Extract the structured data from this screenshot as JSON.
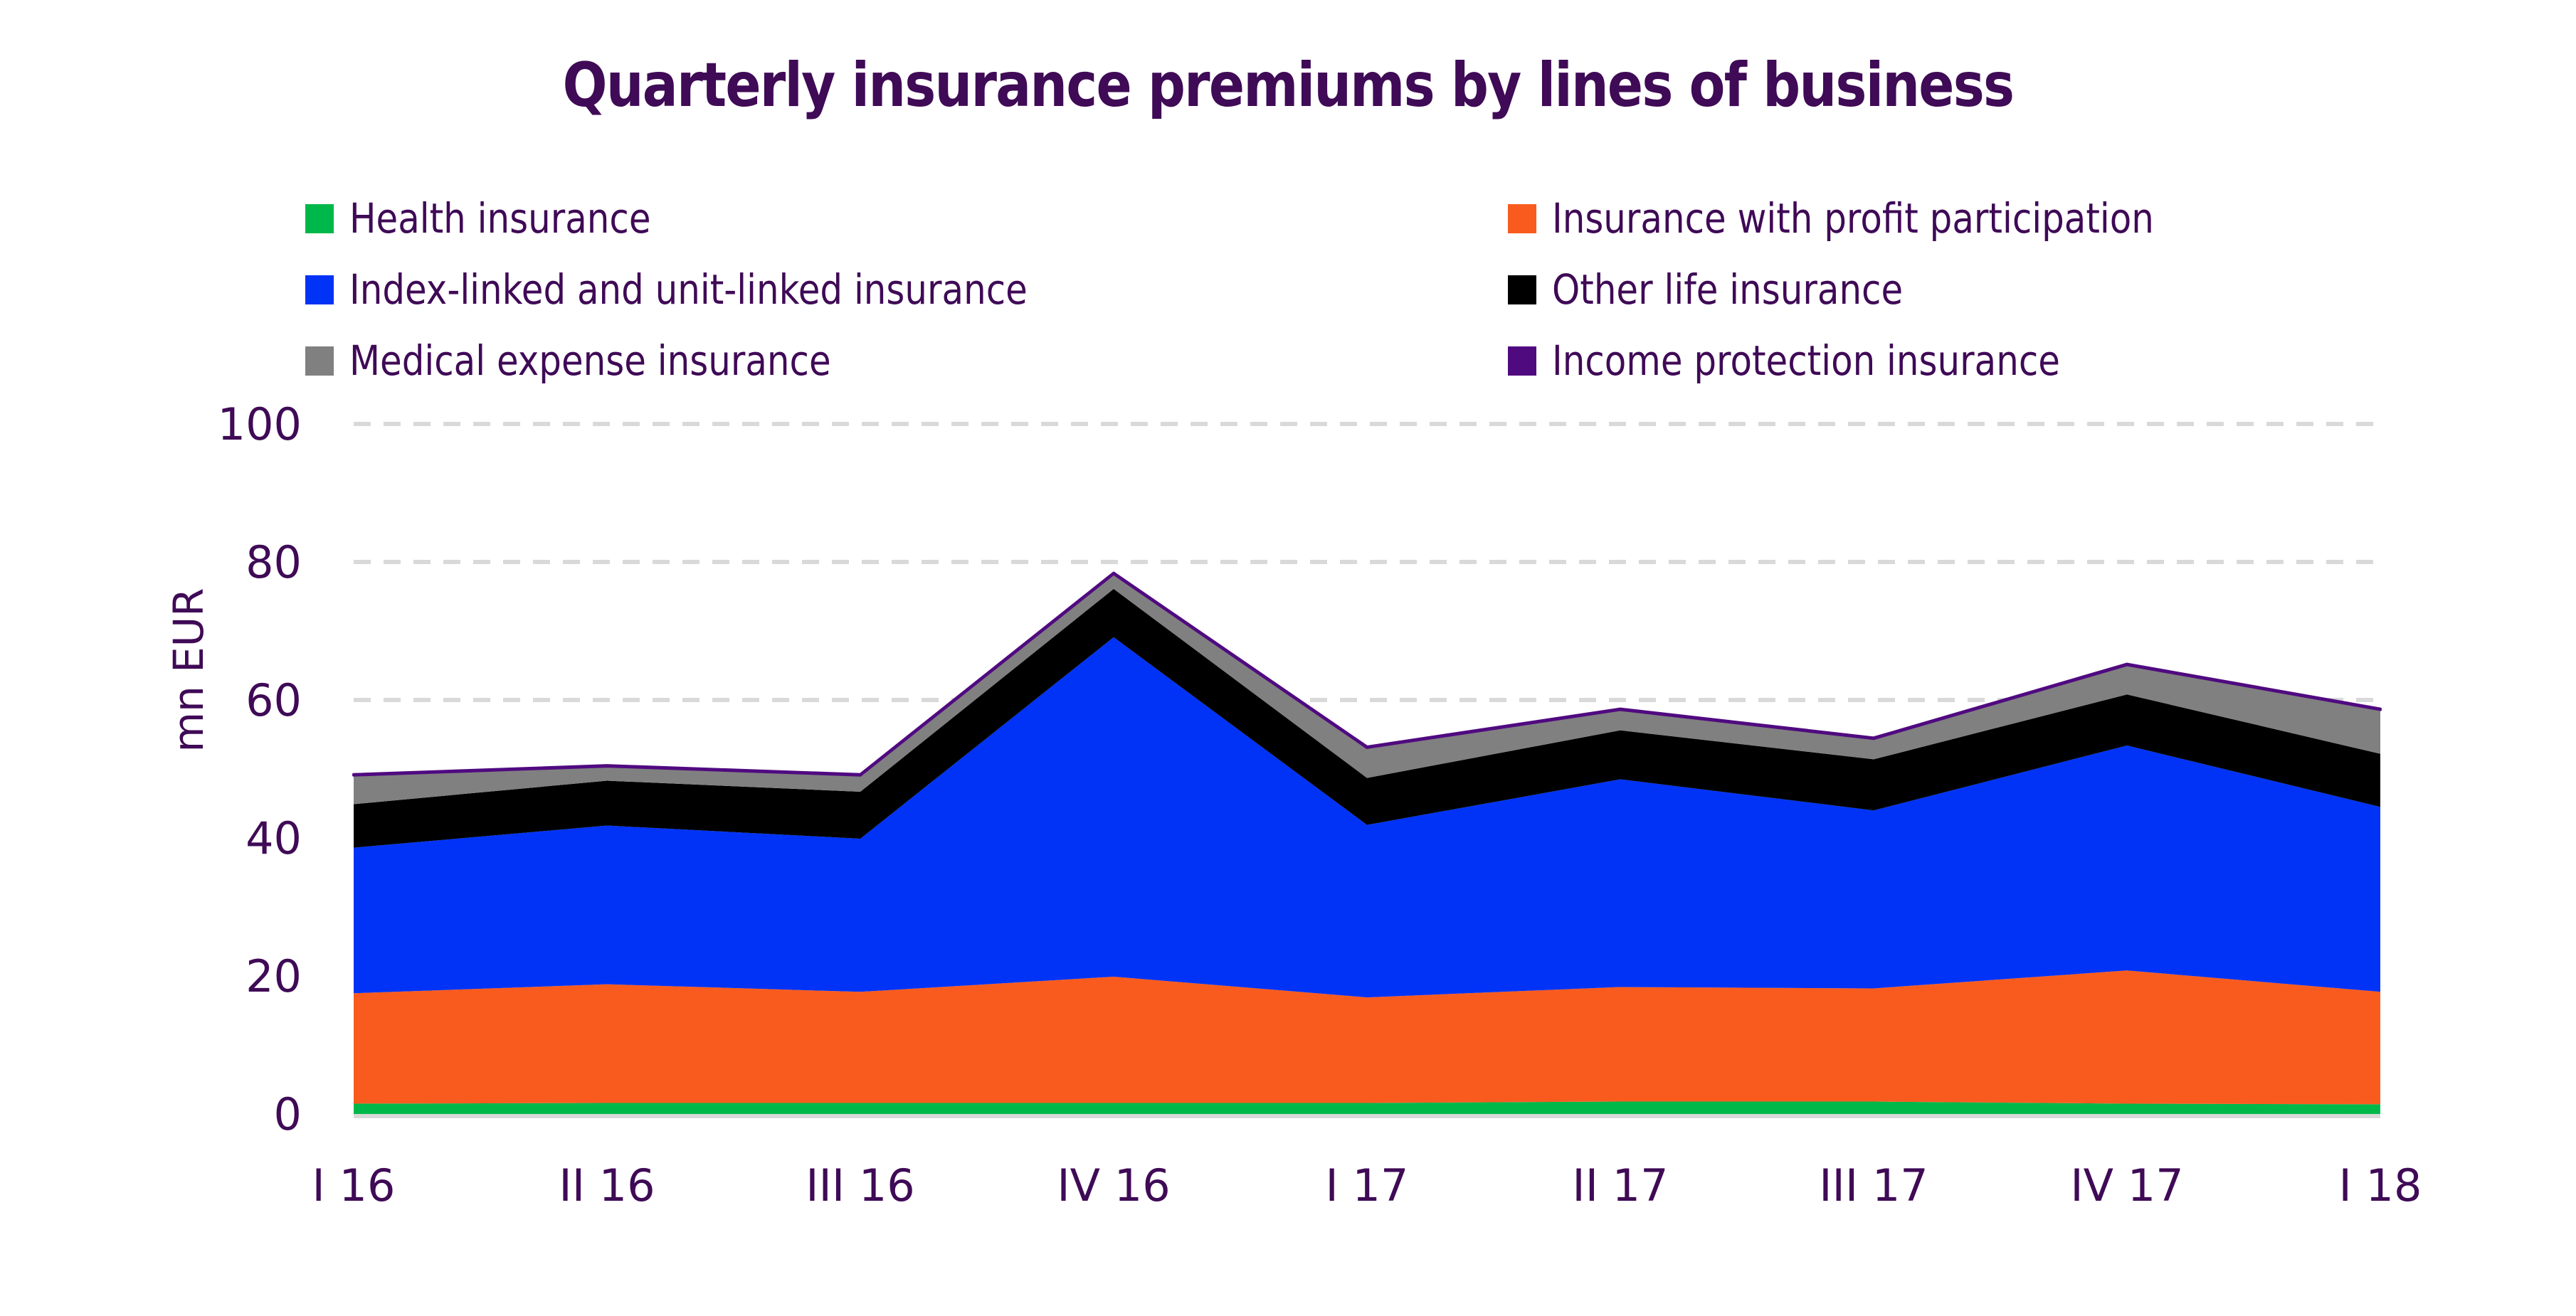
{
  "chart_data": {
    "type": "area",
    "stacked": true,
    "title": "Quarterly insurance premiums by lines of business",
    "xlabel": "",
    "ylabel": "mn EUR",
    "ylim": [
      0,
      100
    ],
    "yticks": [
      0,
      20,
      40,
      60,
      80,
      100
    ],
    "grid": true,
    "legend_position": "top",
    "categories": [
      "I 16",
      "II 16",
      "III 16",
      "IV 16",
      "I 17",
      "II 17",
      "III 17",
      "IV 17",
      "I 18"
    ],
    "series": [
      {
        "name": "Health insurance",
        "color": "#00B84A",
        "values": [
          1.5,
          1.6,
          1.6,
          1.6,
          1.6,
          1.8,
          1.8,
          1.5,
          1.4
        ]
      },
      {
        "name": "Insurance with profit participation",
        "color": "#F95B1F",
        "values": [
          16.0,
          17.2,
          16.1,
          18.3,
          15.3,
          16.6,
          16.4,
          19.3,
          16.3
        ]
      },
      {
        "name": "Index-linked and unit-linked insurance",
        "color": "#0033F5",
        "values": [
          21.1,
          23.0,
          22.2,
          49.2,
          25.0,
          30.1,
          25.8,
          32.6,
          26.8
        ]
      },
      {
        "name": "Other life insurance",
        "color": "#000000",
        "values": [
          6.3,
          6.5,
          6.8,
          7.0,
          6.8,
          7.1,
          7.4,
          7.4,
          7.7
        ]
      },
      {
        "name": "Medical expense insurance",
        "color": "#808080",
        "values": [
          4.2,
          2.1,
          2.4,
          2.2,
          4.4,
          3.0,
          3.0,
          4.3,
          6.4
        ]
      },
      {
        "name": "Income protection insurance",
        "color": "#500A80",
        "values": [
          0.1,
          0.1,
          0.1,
          0.1,
          0.1,
          0.1,
          0.1,
          0.1,
          0.1
        ]
      }
    ]
  },
  "legend": {
    "items": [
      {
        "label": "Health insurance",
        "color": "#00B84A"
      },
      {
        "label": "Insurance with profit participation",
        "color": "#F95B1F"
      },
      {
        "label": "Index-linked and unit-linked insurance",
        "color": "#0033F5"
      },
      {
        "label": "Other life insurance",
        "color": "#000000"
      },
      {
        "label": "Medical expense insurance",
        "color": "#808080"
      },
      {
        "label": "Income protection insurance",
        "color": "#500A80"
      }
    ]
  },
  "colors": {
    "text": "#3F0A56",
    "gridline": "#D9D9D9",
    "baseline": "#D9D9D9"
  }
}
